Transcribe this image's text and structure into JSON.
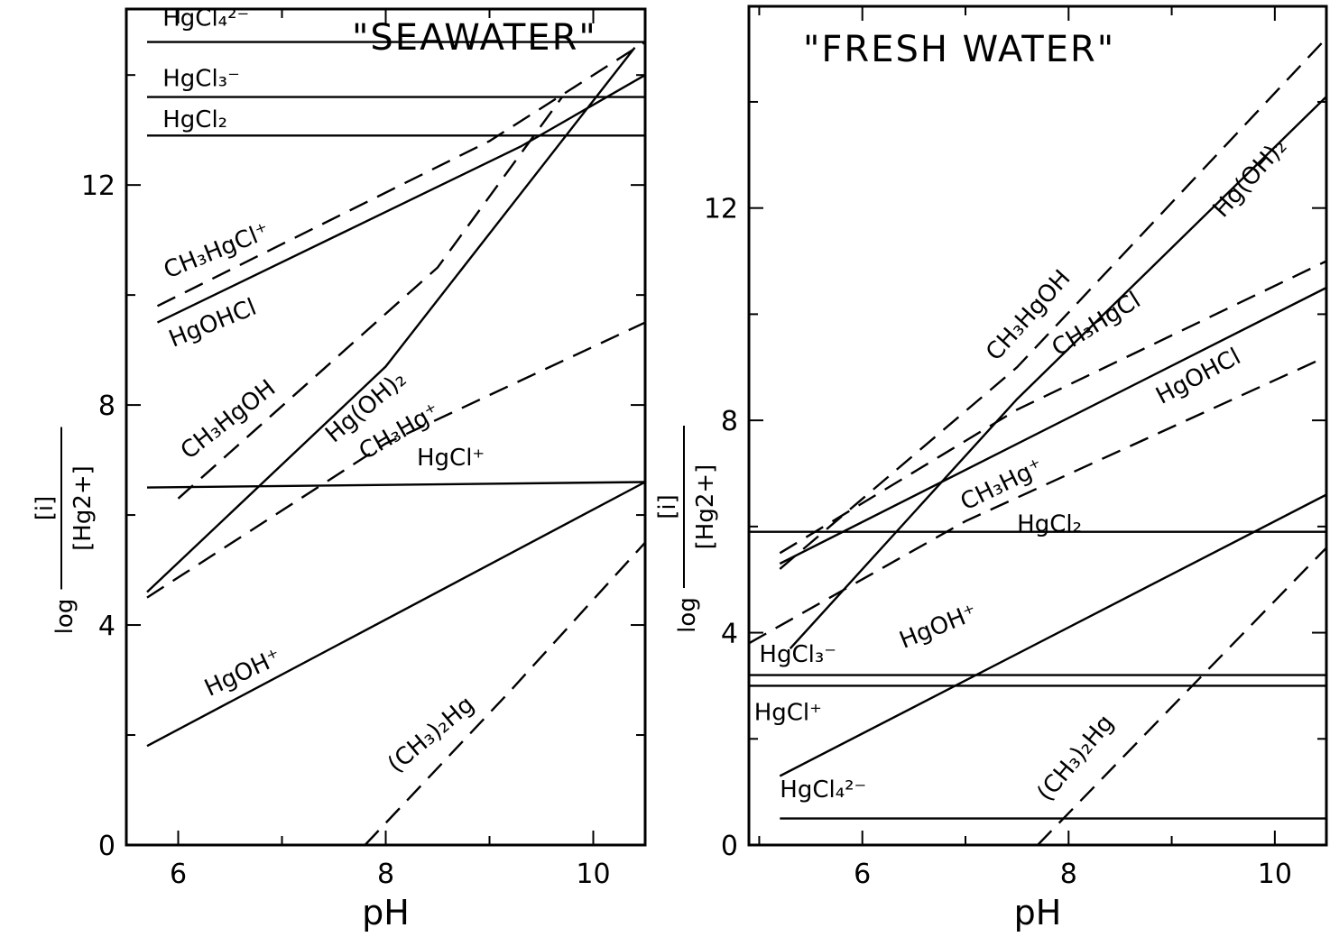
{
  "chart_data": [
    {
      "type": "line",
      "title": "\"SEAWATER\"",
      "xlabel": "pH",
      "ylabel": "log [i]/[Hg2+]",
      "ylabel_num": "[i]",
      "ylabel_den": "[Hg2+]",
      "ylabel_log": "log",
      "xlim": [
        5.5,
        10.5
      ],
      "ylim": [
        0,
        15.2
      ],
      "xticks": [
        "6",
        "8",
        "10"
      ],
      "xtick_values": [
        6,
        8,
        10
      ],
      "yticks": [
        "0",
        "4",
        "8",
        "12"
      ],
      "ytick_values": [
        0,
        4,
        8,
        12
      ],
      "series": [
        {
          "name": "HgCl4 2-",
          "label": "HgCl₄²⁻",
          "style": "solid",
          "x": [
            5.7,
            10.5
          ],
          "y": [
            14.6,
            14.6
          ]
        },
        {
          "name": "HgCl3 -",
          "label": "HgCl₃⁻",
          "style": "solid",
          "x": [
            5.7,
            10.5
          ],
          "y": [
            13.6,
            13.6
          ]
        },
        {
          "name": "HgCl2",
          "label": "HgCl₂",
          "style": "solid",
          "x": [
            5.7,
            10.5
          ],
          "y": [
            12.9,
            12.9
          ]
        },
        {
          "name": "CH3HgCl+",
          "label": "CH₃HgCl⁺",
          "style": "dashed",
          "x": [
            5.8,
            9.0,
            10.5
          ],
          "y": [
            9.8,
            12.8,
            14.6
          ]
        },
        {
          "name": "HgOHCl",
          "label": "HgOHCl",
          "style": "solid",
          "x": [
            5.8,
            9.3,
            10.5
          ],
          "y": [
            9.5,
            12.7,
            14.0
          ]
        },
        {
          "name": "CH3HgOH",
          "label": "CH₃HgOH",
          "style": "dashed",
          "x": [
            6.0,
            8.5,
            9.7
          ],
          "y": [
            6.3,
            10.5,
            13.6
          ]
        },
        {
          "name": "Hg(OH)2",
          "label": "Hg(OH)₂",
          "style": "solid",
          "x": [
            5.7,
            8.0,
            10.4
          ],
          "y": [
            4.6,
            8.7,
            14.5
          ]
        },
        {
          "name": "CH3Hg+",
          "label": "CH₃Hg⁺",
          "style": "dashed",
          "x": [
            5.7,
            8.0,
            10.5
          ],
          "y": [
            4.5,
            7.3,
            9.5
          ]
        },
        {
          "name": "HgCl+",
          "label": "HgCl⁺",
          "style": "solid",
          "x": [
            5.7,
            10.5
          ],
          "y": [
            6.5,
            6.6
          ]
        },
        {
          "name": "HgOH+",
          "label": "HgOH⁺",
          "style": "solid",
          "x": [
            5.7,
            10.5
          ],
          "y": [
            1.8,
            6.6
          ]
        },
        {
          "name": "(CH3)2Hg",
          "label": "(CH₃)₂Hg",
          "style": "dashed",
          "x": [
            7.8,
            9.2,
            10.5
          ],
          "y": [
            0.0,
            2.8,
            5.5
          ]
        }
      ]
    },
    {
      "type": "line",
      "title": "\"FRESH WATER\"",
      "xlabel": "pH",
      "ylabel": "log [i]/[Hg2+]",
      "ylabel_num": "[i]",
      "ylabel_den": "[Hg2+]",
      "ylabel_log": "log",
      "xlim": [
        4.9,
        10.5
      ],
      "ylim": [
        0,
        15.8
      ],
      "xticks": [
        "6",
        "8",
        "10"
      ],
      "xtick_values": [
        6,
        8,
        10
      ],
      "yticks": [
        "0",
        "4",
        "8",
        "12"
      ],
      "ytick_values": [
        0,
        4,
        8,
        12
      ],
      "series": [
        {
          "name": "CH3HgOH",
          "label": "CH₃HgOH",
          "style": "dashed",
          "x": [
            5.2,
            7.5,
            10.5
          ],
          "y": [
            5.2,
            9.0,
            15.2
          ]
        },
        {
          "name": "Hg(OH)2",
          "label": "Hg(OH)₂",
          "style": "solid",
          "x": [
            5.3,
            7.5,
            10.5
          ],
          "y": [
            3.7,
            8.4,
            14.1
          ]
        },
        {
          "name": "CH3HgCl",
          "label": "CH₃HgCl",
          "style": "dashed",
          "x": [
            5.2,
            7.5,
            10.5
          ],
          "y": [
            5.5,
            8.2,
            11.0
          ]
        },
        {
          "name": "HgOHCl",
          "label": "HgOHCl",
          "style": "solid",
          "x": [
            5.2,
            10.5
          ],
          "y": [
            5.3,
            10.5
          ]
        },
        {
          "name": "CH3Hg+",
          "label": "CH₃Hg⁺",
          "style": "dashed",
          "x": [
            4.9,
            7.0,
            10.5
          ],
          "y": [
            3.8,
            6.1,
            9.2
          ]
        },
        {
          "name": "HgCl2",
          "label": "HgCl₂",
          "style": "solid",
          "x": [
            4.9,
            10.5
          ],
          "y": [
            5.9,
            5.9
          ]
        },
        {
          "name": "HgOH+",
          "label": "HgOH⁺",
          "style": "solid",
          "x": [
            5.2,
            10.5
          ],
          "y": [
            1.3,
            6.6
          ]
        },
        {
          "name": "HgCl3 -",
          "label": "HgCl₃⁻",
          "style": "solid",
          "x": [
            4.9,
            10.5
          ],
          "y": [
            3.2,
            3.2
          ]
        },
        {
          "name": "HgCl+",
          "label": "HgCl⁺",
          "style": "solid",
          "x": [
            4.9,
            10.5
          ],
          "y": [
            3.0,
            3.0
          ]
        },
        {
          "name": "HgCl4 2-",
          "label": "HgCl₄²⁻",
          "style": "solid",
          "x": [
            5.2,
            10.5
          ],
          "y": [
            0.5,
            0.5
          ]
        },
        {
          "name": "(CH3)2Hg",
          "label": "(CH₃)₂Hg",
          "style": "dashed",
          "x": [
            7.7,
            9.2,
            10.5
          ],
          "y": [
            0.0,
            3.0,
            5.6
          ]
        }
      ]
    }
  ]
}
